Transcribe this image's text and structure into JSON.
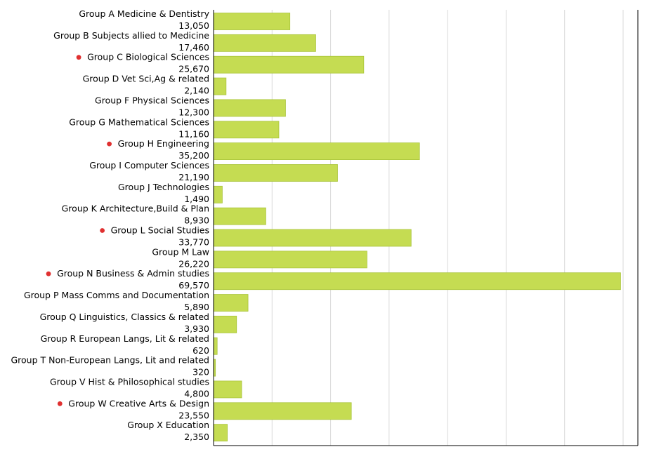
{
  "chart_data": {
    "type": "bar",
    "orientation": "horizontal",
    "categories": [
      "Group A Medicine & Dentistry",
      "Group B Subjects allied to Medicine",
      "Group C Biological Sciences",
      "Group D Vet Sci,Ag & related",
      "Group F Physical Sciences",
      "Group G Mathematical Sciences",
      "Group H Engineering",
      "Group I Computer Sciences",
      "Group J Technologies",
      "Group K Architecture,Build & Plan",
      "Group L Social Studies",
      "Group M Law",
      "Group N Business & Admin studies",
      "Group P Mass Comms and Documentation",
      "Group Q Linguistics, Classics & related",
      "Group R European Langs, Lit & related",
      "Group T Non-European Langs, Lit and related",
      "Group V Hist & Philosophical studies",
      "Group W Creative Arts & Design",
      "Group X Education"
    ],
    "values": [
      13050,
      17460,
      25670,
      2140,
      12300,
      11160,
      35200,
      21190,
      1490,
      8930,
      33770,
      26220,
      69570,
      5890,
      3930,
      620,
      320,
      4800,
      23550,
      2350
    ],
    "value_labels": [
      "13,050",
      "17,460",
      "25,670",
      "2,140",
      "12,300",
      "11,160",
      "35,200",
      "21,190",
      "1,490",
      "8,930",
      "33,770",
      "26,220",
      "69,570",
      "5,890",
      "3,930",
      "620",
      "320",
      "4,800",
      "23,550",
      "2,350"
    ],
    "highlighted": [
      false,
      false,
      true,
      false,
      false,
      false,
      true,
      false,
      false,
      false,
      true,
      false,
      true,
      false,
      false,
      false,
      false,
      false,
      true,
      false
    ],
    "xlim": [
      0,
      70000
    ],
    "grid_step": 10000,
    "grid": true,
    "bar_color": "#c5dc52",
    "bar_edge_color": "#a9c43a",
    "grid_color": "#d9d9d9",
    "marker_color": "#e03030"
  }
}
